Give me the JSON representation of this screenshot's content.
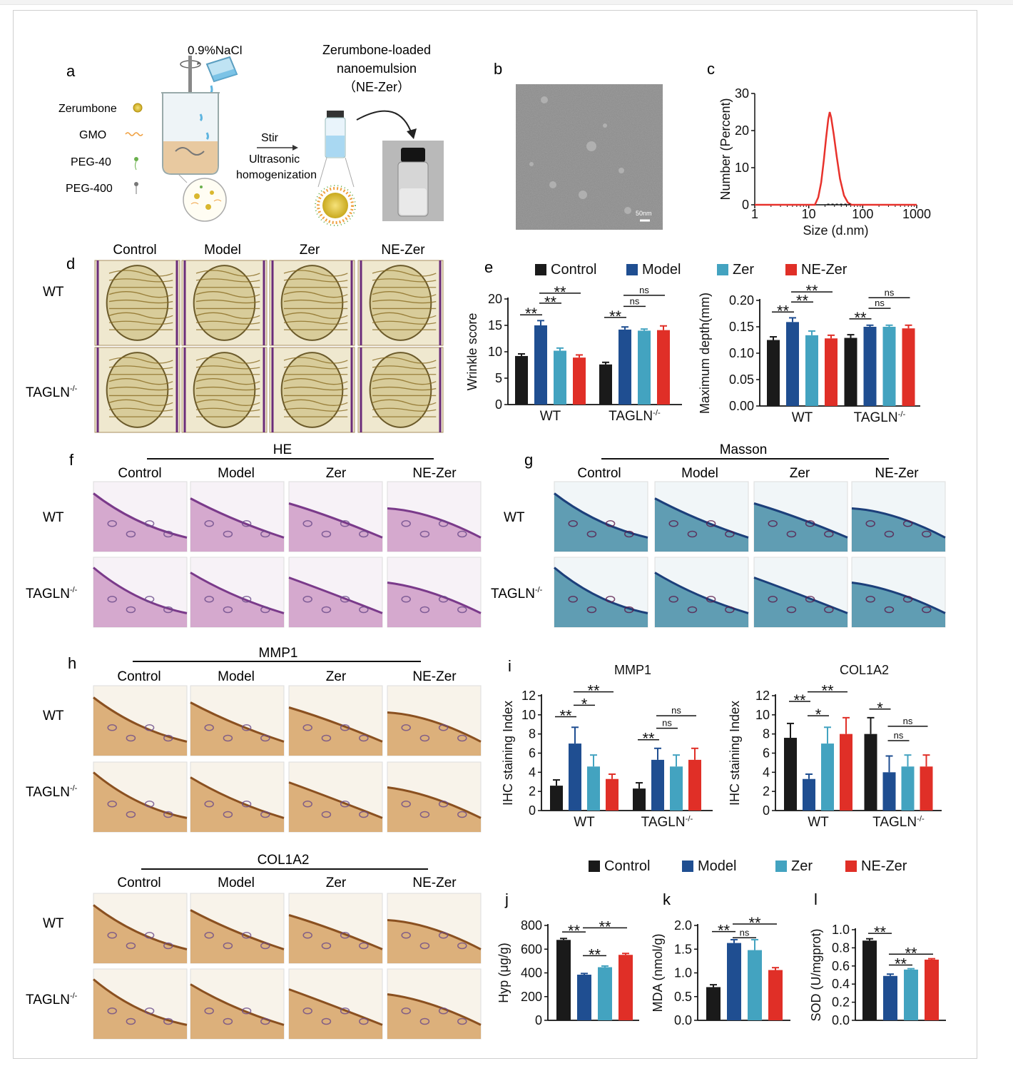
{
  "colors": {
    "Control": "#1a1a1a",
    "Model": "#1f4e91",
    "Zer": "#43a3c0",
    "NE-Zer": "#e02f27",
    "dls": "#e8322c",
    "tissue_he": "#c990c0",
    "tissue_masson": "#2f7f9c",
    "tissue_ihc": "#d39a55"
  },
  "panel_letters": {
    "a": "a",
    "b": "b",
    "c": "c",
    "d": "d",
    "e": "e",
    "f": "f",
    "g": "g",
    "h": "h",
    "i": "i",
    "j": "j",
    "k": "k",
    "l": "l"
  },
  "groups": [
    "Control",
    "Model",
    "Zer",
    "NE-Zer"
  ],
  "genotypes": [
    "WT",
    "TAGLN-/-"
  ],
  "panel_a": {
    "nacl": "0.9%NaCl",
    "ingredients": [
      "Zerumbone",
      "GMO",
      "PEG-40",
      "PEG-400"
    ],
    "stir": "Stir",
    "process": [
      "Ultrasonic",
      "homogenization"
    ],
    "product": [
      "Zerumbone-loaded",
      "nanoemulsion",
      "（NE-Zer）"
    ]
  },
  "panel_b": {
    "scale": "50nm"
  },
  "panel_f": {
    "title": "HE"
  },
  "panel_g": {
    "title": "Masson"
  },
  "panel_h": {
    "title1": "MMP1",
    "title2": "COL1A2"
  },
  "chart_data": [
    {
      "id": "c",
      "type": "line",
      "xlabel": "Size (d.nm)",
      "ylabel": "Number (Percent)",
      "xscale": "log",
      "xlim": [
        1,
        1000
      ],
      "ylim": [
        0,
        30
      ],
      "xticks": [
        "1",
        "10",
        "100",
        "1000"
      ],
      "yticks": [
        "0",
        "10",
        "20",
        "30"
      ],
      "series": [
        {
          "x": [
            13,
            15,
            17,
            19,
            21,
            23,
            24.5,
            26,
            29,
            33,
            38,
            45,
            53,
            62
          ],
          "y": [
            0,
            2,
            6,
            12,
            18,
            23,
            25,
            23.5,
            19,
            13,
            7,
            2.5,
            0.6,
            0
          ]
        }
      ]
    },
    {
      "id": "e1",
      "type": "bar",
      "ylabel": "Wrinkle score",
      "categories": [
        "WT",
        "TAGLN-/-"
      ],
      "ylim": [
        0,
        20
      ],
      "yticks": [
        "0",
        "5",
        "10",
        "15",
        "20"
      ],
      "series": [
        {
          "name": "Control",
          "values": [
            9.2,
            7.6
          ],
          "err": [
            0.4,
            0.4
          ]
        },
        {
          "name": "Model",
          "values": [
            15.0,
            14.2
          ],
          "err": [
            0.9,
            0.5
          ]
        },
        {
          "name": "Zer",
          "values": [
            10.2,
            14.0
          ],
          "err": [
            0.5,
            0.3
          ]
        },
        {
          "name": "NE-Zer",
          "values": [
            8.9,
            14.1
          ],
          "err": [
            0.5,
            0.8
          ]
        }
      ],
      "annotations": [
        {
          "label": "**",
          "g": 0,
          "from": 0,
          "to": 1,
          "y": 17.0
        },
        {
          "label": "**",
          "g": 0,
          "from": 1,
          "to": 2,
          "y": 19.2
        },
        {
          "label": "**",
          "g": 0,
          "from": 1,
          "to": 3,
          "y": 21.1
        },
        {
          "label": "**",
          "g": 1,
          "from": 0,
          "to": 1,
          "y": 16.5
        },
        {
          "label": "ns",
          "g": 1,
          "from": 1,
          "to": 2,
          "y": 18.6
        },
        {
          "label": "ns",
          "g": 1,
          "from": 1,
          "to": 3,
          "y": 20.7
        }
      ]
    },
    {
      "id": "e2",
      "type": "bar",
      "ylabel": "Maximum depth(mm)",
      "categories": [
        "WT",
        "TAGLN-/-"
      ],
      "ylim": [
        0,
        0.2
      ],
      "yticks": [
        "0.00",
        "0.05",
        "0.10",
        "0.15",
        "0.20"
      ],
      "series": [
        {
          "name": "Control",
          "values": [
            0.125,
            0.129
          ],
          "err": [
            0.006,
            0.006
          ]
        },
        {
          "name": "Model",
          "values": [
            0.159,
            0.15
          ],
          "err": [
            0.008,
            0.003
          ]
        },
        {
          "name": "Zer",
          "values": [
            0.134,
            0.15
          ],
          "err": [
            0.008,
            0.003
          ]
        },
        {
          "name": "NE-Zer",
          "values": [
            0.128,
            0.147
          ],
          "err": [
            0.006,
            0.006
          ]
        }
      ],
      "annotations": [
        {
          "label": "**",
          "g": 0,
          "from": 0,
          "to": 1,
          "y": 0.178
        },
        {
          "label": "**",
          "g": 0,
          "from": 1,
          "to": 2,
          "y": 0.197
        },
        {
          "label": "**",
          "g": 0,
          "from": 1,
          "to": 3,
          "y": 0.216
        },
        {
          "label": "**",
          "g": 1,
          "from": 0,
          "to": 1,
          "y": 0.165
        },
        {
          "label": "ns",
          "g": 1,
          "from": 1,
          "to": 2,
          "y": 0.185
        },
        {
          "label": "ns",
          "g": 1,
          "from": 1,
          "to": 3,
          "y": 0.205
        }
      ]
    },
    {
      "id": "i1",
      "type": "bar",
      "title": "MMP1",
      "ylabel": "IHC staining Index",
      "categories": [
        "WT",
        "TAGLN-/-"
      ],
      "ylim": [
        0,
        12
      ],
      "yticks": [
        "0",
        "2",
        "4",
        "6",
        "8",
        "10",
        "12"
      ],
      "series": [
        {
          "name": "Control",
          "values": [
            2.6,
            2.3
          ],
          "err": [
            0.6,
            0.6
          ]
        },
        {
          "name": "Model",
          "values": [
            7.0,
            5.3
          ],
          "err": [
            1.7,
            1.2
          ]
        },
        {
          "name": "Zer",
          "values": [
            4.6,
            4.6
          ],
          "err": [
            1.2,
            1.2
          ]
        },
        {
          "name": "NE-Zer",
          "values": [
            3.3,
            5.3
          ],
          "err": [
            0.5,
            1.2
          ]
        }
      ],
      "annotations": [
        {
          "label": "**",
          "g": 0,
          "from": 0,
          "to": 1,
          "y": 9.8
        },
        {
          "label": "*",
          "g": 0,
          "from": 1,
          "to": 2,
          "y": 11.0
        },
        {
          "label": "**",
          "g": 0,
          "from": 1,
          "to": 3,
          "y": 12.4
        },
        {
          "label": "**",
          "g": 1,
          "from": 0,
          "to": 1,
          "y": 7.4
        },
        {
          "label": "ns",
          "g": 1,
          "from": 1,
          "to": 2,
          "y": 8.6
        },
        {
          "label": "ns",
          "g": 1,
          "from": 1,
          "to": 3,
          "y": 9.9
        }
      ]
    },
    {
      "id": "i2",
      "type": "bar",
      "title": "COL1A2",
      "ylabel": "IHC staining Index",
      "categories": [
        "WT",
        "TAGLN-/-"
      ],
      "ylim": [
        0,
        12
      ],
      "yticks": [
        "0",
        "2",
        "4",
        "6",
        "8",
        "10",
        "12"
      ],
      "series": [
        {
          "name": "Control",
          "values": [
            7.6,
            8.0
          ],
          "err": [
            1.5,
            1.7
          ]
        },
        {
          "name": "Model",
          "values": [
            3.3,
            4.0
          ],
          "err": [
            0.5,
            1.7
          ]
        },
        {
          "name": "Zer",
          "values": [
            7.0,
            4.6
          ],
          "err": [
            1.7,
            1.2
          ]
        },
        {
          "name": "NE-Zer",
          "values": [
            8.0,
            4.6
          ],
          "err": [
            1.7,
            1.2
          ]
        }
      ],
      "annotations": [
        {
          "label": "**",
          "g": 0,
          "from": 0,
          "to": 1,
          "y": 11.4
        },
        {
          "label": "*",
          "g": 0,
          "from": 1,
          "to": 2,
          "y": 9.9
        },
        {
          "label": "**",
          "g": 0,
          "from": 1,
          "to": 3,
          "y": 12.4
        },
        {
          "label": "*",
          "g": 1,
          "from": 0,
          "to": 1,
          "y": 10.6
        },
        {
          "label": "ns",
          "g": 1,
          "from": 1,
          "to": 2,
          "y": 7.3
        },
        {
          "label": "ns",
          "g": 1,
          "from": 1,
          "to": 3,
          "y": 8.8
        }
      ]
    },
    {
      "id": "j",
      "type": "bar",
      "ylabel": "Hyp (μg/g)",
      "ylim": [
        0,
        800
      ],
      "yticks": [
        "0",
        "200",
        "400",
        "600",
        "800"
      ],
      "series": [
        {
          "name": "Control",
          "values": [
            678
          ],
          "err": [
            12
          ]
        },
        {
          "name": "Model",
          "values": [
            385
          ],
          "err": [
            10
          ]
        },
        {
          "name": "Zer",
          "values": [
            448
          ],
          "err": [
            10
          ]
        },
        {
          "name": "NE-Zer",
          "values": [
            552
          ],
          "err": [
            12
          ]
        }
      ],
      "annotations": [
        {
          "label": "**",
          "from": 0,
          "to": 1,
          "y": 745
        },
        {
          "label": "**",
          "from": 1,
          "to": 2,
          "y": 545
        },
        {
          "label": "**",
          "from": 1,
          "to": 3,
          "y": 780
        }
      ]
    },
    {
      "id": "k",
      "type": "bar",
      "ylabel": "MDA (nmol/g)",
      "ylim": [
        0,
        2
      ],
      "yticks": [
        "0.0",
        "0.5",
        "1.0",
        "1.5",
        "2.0"
      ],
      "series": [
        {
          "name": "Control",
          "values": [
            0.7
          ],
          "err": [
            0.05
          ]
        },
        {
          "name": "Model",
          "values": [
            1.63
          ],
          "err": [
            0.07
          ]
        },
        {
          "name": "Zer",
          "values": [
            1.48
          ],
          "err": [
            0.22
          ]
        },
        {
          "name": "NE-Zer",
          "values": [
            1.06
          ],
          "err": [
            0.05
          ]
        }
      ],
      "annotations": [
        {
          "label": "**",
          "from": 0,
          "to": 1,
          "y": 1.87
        },
        {
          "label": "ns",
          "from": 1,
          "to": 2,
          "y": 1.74
        },
        {
          "label": "**",
          "from": 1,
          "to": 3,
          "y": 2.03
        }
      ]
    },
    {
      "id": "l",
      "type": "bar",
      "ylabel": "SOD (U/mgprot)",
      "ylim": [
        0,
        1
      ],
      "yticks": [
        "0.0",
        "0.2",
        "0.4",
        "0.6",
        "0.8",
        "1.0"
      ],
      "series": [
        {
          "name": "Control",
          "values": [
            0.88
          ],
          "err": [
            0.02
          ]
        },
        {
          "name": "Model",
          "values": [
            0.49
          ],
          "err": [
            0.02
          ]
        },
        {
          "name": "Zer",
          "values": [
            0.56
          ],
          "err": [
            0.01
          ]
        },
        {
          "name": "NE-Zer",
          "values": [
            0.67
          ],
          "err": [
            0.01
          ]
        }
      ],
      "annotations": [
        {
          "label": "**",
          "from": 0,
          "to": 1,
          "y": 0.96
        },
        {
          "label": "**",
          "from": 1,
          "to": 2,
          "y": 0.61
        },
        {
          "label": "**",
          "from": 1,
          "to": 3,
          "y": 0.73
        }
      ]
    }
  ]
}
